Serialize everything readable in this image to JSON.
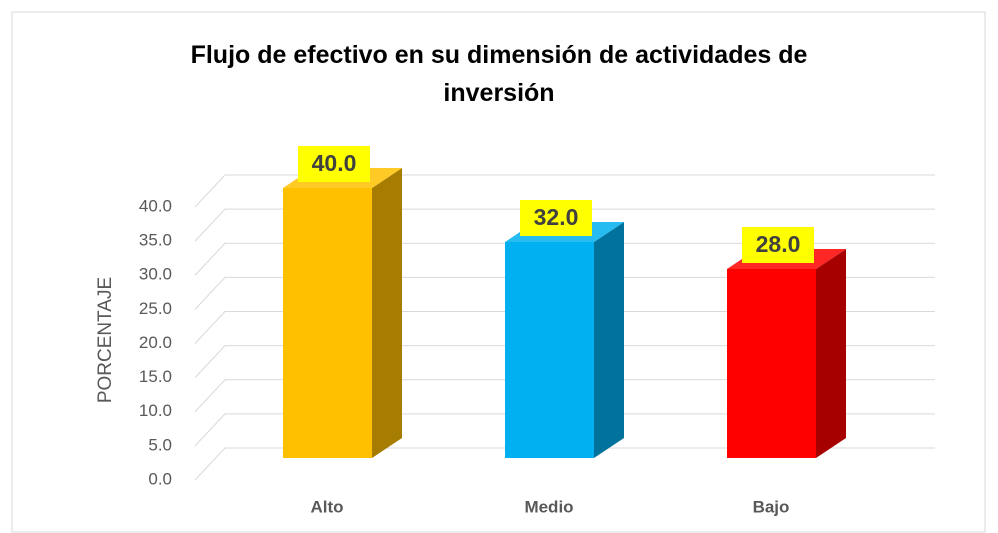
{
  "chart_data": {
    "type": "bar3d",
    "title": "Flujo de efectivo en su dimensión de actividades de inversión",
    "y_label": "PORCENTAJE",
    "categories": [
      "Alto",
      "Medio",
      "Bajo"
    ],
    "values": [
      40,
      32,
      28
    ],
    "value_labels": [
      "40.0",
      "32.0",
      "28.0"
    ],
    "colors": [
      "#FFC000",
      "#00B0F0",
      "#FF0000"
    ],
    "ylim": [
      0,
      40
    ],
    "yticks": [
      {
        "value": 0,
        "label": "0.0"
      },
      {
        "value": 5,
        "label": "5.0"
      },
      {
        "value": 10,
        "label": "10.0"
      },
      {
        "value": 15,
        "label": "15.0"
      },
      {
        "value": 20,
        "label": "20.0"
      },
      {
        "value": 25,
        "label": "25.0"
      },
      {
        "value": 30,
        "label": "30.0"
      },
      {
        "value": 35,
        "label": "35.0"
      },
      {
        "value": 40,
        "label": "40.0"
      }
    ],
    "grid": true
  }
}
